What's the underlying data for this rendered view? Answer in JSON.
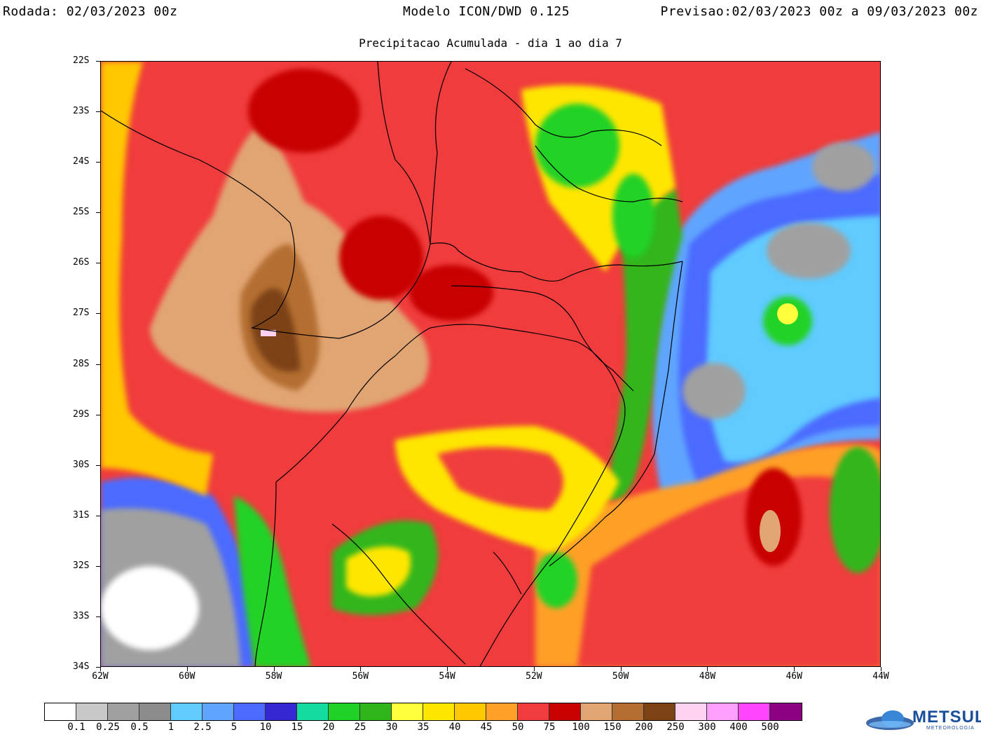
{
  "header": {
    "run_label": "Rodada: 02/03/2023 00z",
    "model_label": "Modelo ICON/DWD 0.125",
    "forecast_label": "Previsao:02/03/2023 00z a 09/03/2023 00z"
  },
  "subtitle": "Precipitacao Acumulada - dia 1 ao dia 7",
  "axes": {
    "lat_labels": [
      "22S",
      "23S",
      "24S",
      "25S",
      "26S",
      "27S",
      "28S",
      "29S",
      "30S",
      "31S",
      "32S",
      "33S",
      "34S"
    ],
    "lon_labels": [
      "62W",
      "60W",
      "58W",
      "56W",
      "54W",
      "52W",
      "50W",
      "48W",
      "46W",
      "44W"
    ]
  },
  "colorbar": {
    "colors": [
      "#ffffff",
      "#c8c8c8",
      "#a0a0a0",
      "#8c8c8c",
      "#5fcbff",
      "#5fa5ff",
      "#4b6aff",
      "#3528d2",
      "#14dca0",
      "#20d228",
      "#30b61a",
      "#ffff3c",
      "#ffe600",
      "#ffc800",
      "#ffa028",
      "#f03c3c",
      "#c80000",
      "#e1a573",
      "#b46e32",
      "#7b4215",
      "#ffd2f0",
      "#ffa0ff",
      "#ff46ff",
      "#8c0082"
    ],
    "labels": [
      "0.1",
      "0.25",
      "0.5",
      "1",
      "2.5",
      "5",
      "10",
      "15",
      "20",
      "25",
      "30",
      "35",
      "40",
      "45",
      "50",
      "75",
      "100",
      "150",
      "200",
      "250",
      "300",
      "400",
      "500"
    ]
  },
  "logo": {
    "name": "METSUL",
    "sub": "METEOROLOGIA",
    "icon": "globe-icon"
  }
}
